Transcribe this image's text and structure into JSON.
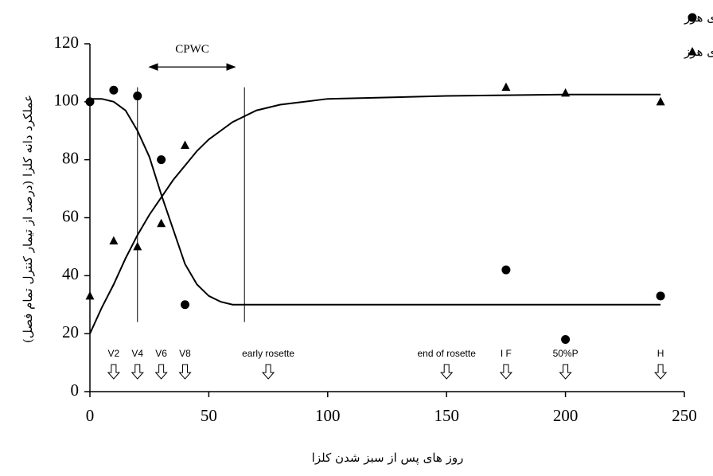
{
  "chart_data": {
    "type": "scatter",
    "x_label": "روز های پس از سبز شدن کلزا",
    "y_label": "عملکرد دانه کلزا (درصد از تیمار کنترل تمام فصل)",
    "xlim": [
      0,
      250
    ],
    "xticks": [
      0,
      50,
      100,
      150,
      200,
      250
    ],
    "ylim": [
      0,
      120
    ],
    "yticks": [
      0,
      20,
      40,
      60,
      80,
      100,
      120
    ],
    "x": [
      0,
      10,
      20,
      30,
      40,
      175,
      200,
      240
    ],
    "series": [
      {
        "name": "تیمار تداخل علف های هرز",
        "marker": "circle",
        "color": "#000000",
        "values": [
          100,
          104,
          102,
          80,
          30,
          42,
          18,
          33
        ]
      },
      {
        "name": "تیمار کنترل علف های هرز",
        "marker": "triangle",
        "color": "#000000",
        "values": [
          33,
          52,
          50,
          58,
          85,
          105,
          103,
          100
        ]
      }
    ],
    "fit_lines": [
      {
        "x": [
          0,
          5,
          10,
          15,
          20,
          25,
          30,
          35,
          40,
          45,
          50,
          55,
          60,
          70,
          80,
          100,
          150,
          200,
          240
        ],
        "values": [
          101,
          101,
          100,
          97,
          90,
          81,
          68,
          56,
          44,
          37,
          33,
          31,
          30,
          30,
          30,
          30,
          30,
          30,
          30
        ]
      },
      {
        "x": [
          0,
          5,
          10,
          15,
          20,
          25,
          30,
          35,
          40,
          45,
          50,
          55,
          60,
          70,
          80,
          100,
          150,
          200,
          240
        ],
        "values": [
          20,
          29,
          37,
          46,
          54,
          61,
          67,
          73,
          78,
          83,
          87,
          90,
          93,
          97,
          99,
          101,
          102,
          102.5,
          102.5
        ]
      }
    ],
    "cpwc": {
      "label": "CPWC",
      "bounds": [
        20,
        65
      ],
      "line_range": [
        24,
        105
      ],
      "arrow_x": [
        25,
        61
      ],
      "arrow_y": 112
    },
    "stages": [
      {
        "label": "V2",
        "x": 10
      },
      {
        "label": "V4",
        "x": 20
      },
      {
        "label": "V6",
        "x": 30
      },
      {
        "label": "V8",
        "x": 40
      },
      {
        "label": "early rosette",
        "x": 75
      },
      {
        "label": "end of rosette",
        "x": 150
      },
      {
        "label": "I F",
        "x": 175
      },
      {
        "label": "50%P",
        "x": 200
      },
      {
        "label": "H",
        "x": 240
      }
    ],
    "legend": "top-right"
  }
}
